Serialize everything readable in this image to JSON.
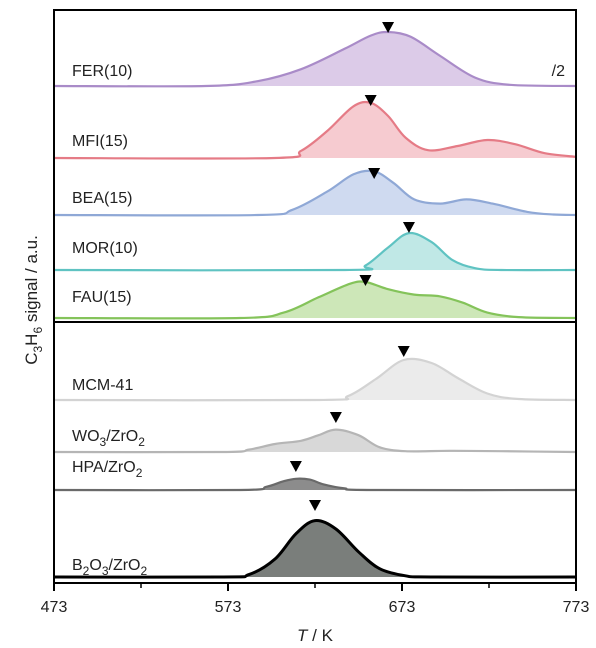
{
  "chart_data": {
    "type": "area",
    "x_axis": {
      "label_italic": "T",
      "label_rest": " / K",
      "range": [
        473,
        773
      ],
      "ticks": [
        473,
        573,
        673,
        773
      ],
      "minor_ticks": [
        523,
        623,
        723
      ]
    },
    "y_axis": {
      "label": "C3H6 signal / a.u.",
      "label_parts": [
        {
          "t": "C",
          "s": "n"
        },
        {
          "t": "3",
          "s": "sub"
        },
        {
          "t": "H",
          "s": "n"
        },
        {
          "t": "6",
          "s": "sub"
        },
        {
          "t": " signal / a.u.",
          "s": "n"
        }
      ]
    },
    "scale_note": "/2",
    "series": [
      {
        "name": "FER(10)",
        "label_parts": [
          {
            "t": "FER(10)",
            "s": "n"
          }
        ],
        "color": "#a98bc8",
        "fill": "#dccbe8",
        "peak_marker": 665,
        "points": [
          [
            473,
            0
          ],
          [
            560,
            0
          ],
          [
            590,
            0.08
          ],
          [
            615,
            0.28
          ],
          [
            640,
            0.62
          ],
          [
            655,
            0.84
          ],
          [
            665,
            0.9
          ],
          [
            678,
            0.82
          ],
          [
            695,
            0.5
          ],
          [
            715,
            0.14
          ],
          [
            735,
            0.02
          ],
          [
            773,
            0
          ]
        ]
      },
      {
        "name": "MFI(15)",
        "label_parts": [
          {
            "t": "MFI(15)",
            "s": "n"
          }
        ],
        "color": "#e57b86",
        "fill": "#f6cbd0",
        "peak_marker": 655,
        "points": [
          [
            473,
            0
          ],
          [
            600,
            0
          ],
          [
            615,
            0.12
          ],
          [
            630,
            0.45
          ],
          [
            645,
            0.86
          ],
          [
            655,
            0.92
          ],
          [
            665,
            0.7
          ],
          [
            675,
            0.34
          ],
          [
            688,
            0.13
          ],
          [
            705,
            0.2
          ],
          [
            722,
            0.3
          ],
          [
            738,
            0.23
          ],
          [
            755,
            0.08
          ],
          [
            773,
            0.02
          ]
        ]
      },
      {
        "name": "BEA(15)",
        "label_parts": [
          {
            "t": "BEA(15)",
            "s": "n"
          }
        ],
        "color": "#8fa8d6",
        "fill": "#cfdaf0",
        "peak_marker": 657,
        "points": [
          [
            473,
            0
          ],
          [
            590,
            0
          ],
          [
            610,
            0.1
          ],
          [
            630,
            0.45
          ],
          [
            645,
            0.78
          ],
          [
            657,
            0.84
          ],
          [
            668,
            0.62
          ],
          [
            680,
            0.3
          ],
          [
            695,
            0.22
          ],
          [
            710,
            0.3
          ],
          [
            725,
            0.22
          ],
          [
            745,
            0.06
          ],
          [
            760,
            0.01
          ],
          [
            773,
            0
          ]
        ]
      },
      {
        "name": "MOR(10)",
        "label_parts": [
          {
            "t": "MOR(10)",
            "s": "n"
          }
        ],
        "color": "#5fc3c2",
        "fill": "#c0e8e6",
        "peak_marker": 677,
        "points": [
          [
            473,
            0
          ],
          [
            640,
            0
          ],
          [
            652,
            0.1
          ],
          [
            665,
            0.5
          ],
          [
            677,
            0.82
          ],
          [
            690,
            0.62
          ],
          [
            702,
            0.22
          ],
          [
            715,
            0.04
          ],
          [
            730,
            0
          ],
          [
            773,
            0
          ]
        ]
      },
      {
        "name": "FAU(15)",
        "label_parts": [
          {
            "t": "FAU(15)",
            "s": "n"
          }
        ],
        "color": "#84c35a",
        "fill": "#cde7b8",
        "peak_marker": 652,
        "points": [
          [
            473,
            0
          ],
          [
            580,
            0
          ],
          [
            605,
            0.12
          ],
          [
            625,
            0.46
          ],
          [
            643,
            0.76
          ],
          [
            652,
            0.8
          ],
          [
            665,
            0.64
          ],
          [
            680,
            0.52
          ],
          [
            695,
            0.48
          ],
          [
            708,
            0.34
          ],
          [
            722,
            0.12
          ],
          [
            740,
            0.02
          ],
          [
            773,
            0
          ]
        ]
      },
      {
        "name": "MCM-41",
        "label_parts": [
          {
            "t": "MCM-41",
            "s": "n"
          }
        ],
        "color": "#d3d3d3",
        "fill": "#ebebeb",
        "peak_marker": 674,
        "points": [
          [
            473,
            0
          ],
          [
            625,
            0
          ],
          [
            642,
            0.08
          ],
          [
            658,
            0.42
          ],
          [
            674,
            0.8
          ],
          [
            690,
            0.74
          ],
          [
            705,
            0.44
          ],
          [
            722,
            0.13
          ],
          [
            740,
            0.02
          ],
          [
            773,
            0
          ]
        ]
      },
      {
        "name": "WO3/ZrO2",
        "label_parts": [
          {
            "t": "WO",
            "s": "n"
          },
          {
            "t": "3",
            "s": "sub"
          },
          {
            "t": "/ZrO",
            "s": "n"
          },
          {
            "t": "2",
            "s": "sub"
          }
        ],
        "color": "#b5b5b5",
        "fill": "#d8d8d8",
        "peak_marker": 635,
        "points": [
          [
            473,
            0
          ],
          [
            570,
            0
          ],
          [
            585,
            0.06
          ],
          [
            600,
            0.2
          ],
          [
            615,
            0.28
          ],
          [
            625,
            0.42
          ],
          [
            635,
            0.56
          ],
          [
            648,
            0.42
          ],
          [
            660,
            0.12
          ],
          [
            675,
            0.02
          ],
          [
            700,
            0.03
          ],
          [
            730,
            0.02
          ],
          [
            773,
            0
          ]
        ]
      },
      {
        "name": "HPA/ZrO2",
        "label_parts": [
          {
            "t": "HPA/ZrO",
            "s": "n"
          },
          {
            "t": "2",
            "s": "sub"
          }
        ],
        "color": "#6a6a6a",
        "fill": "#8c8c8c",
        "peak_marker": 612,
        "points": [
          [
            473,
            0
          ],
          [
            580,
            0
          ],
          [
            595,
            0.08
          ],
          [
            605,
            0.22
          ],
          [
            612,
            0.28
          ],
          [
            620,
            0.26
          ],
          [
            628,
            0.14
          ],
          [
            640,
            0.04
          ],
          [
            655,
            0
          ],
          [
            773,
            0
          ]
        ]
      },
      {
        "name": "B2O3/ZrO2",
        "label_parts": [
          {
            "t": "B",
            "s": "n"
          },
          {
            "t": "2",
            "s": "sub"
          },
          {
            "t": "O",
            "s": "n"
          },
          {
            "t": "3",
            "s": "sub"
          },
          {
            "t": "/ZrO",
            "s": "n"
          },
          {
            "t": "2",
            "s": "sub"
          }
        ],
        "color": "#000000",
        "fill": "#7a7e7b",
        "peak_marker": 623,
        "points": [
          [
            473,
            0
          ],
          [
            570,
            0
          ],
          [
            585,
            0.04
          ],
          [
            600,
            0.3
          ],
          [
            612,
            0.72
          ],
          [
            623,
            0.94
          ],
          [
            635,
            0.8
          ],
          [
            648,
            0.42
          ],
          [
            660,
            0.14
          ],
          [
            675,
            0.02
          ],
          [
            690,
            0
          ],
          [
            773,
            0
          ]
        ]
      }
    ]
  }
}
